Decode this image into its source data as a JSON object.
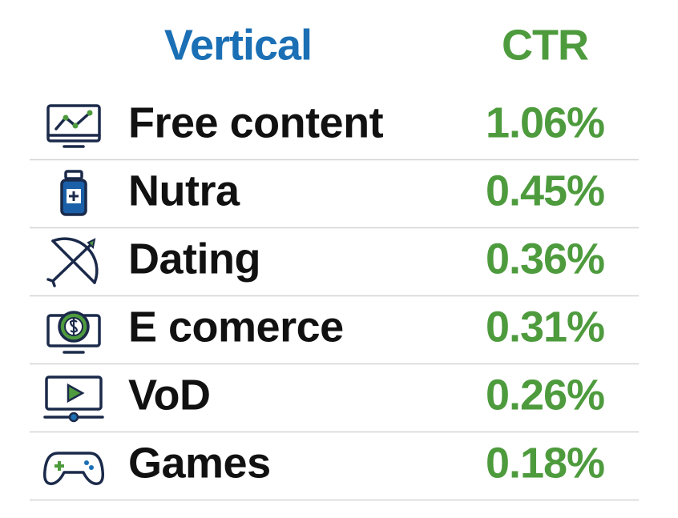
{
  "table": {
    "header": [
      "Vertical",
      "CTR"
    ],
    "rows": [
      [
        "Free content",
        "1.06%"
      ],
      [
        "Nutra",
        "0.45%"
      ],
      [
        "Dating",
        "0.36%"
      ],
      [
        "E comerce",
        "0.31%"
      ],
      [
        "VoD",
        "0.26%"
      ],
      [
        "Games",
        "0.18%"
      ]
    ]
  }
}
